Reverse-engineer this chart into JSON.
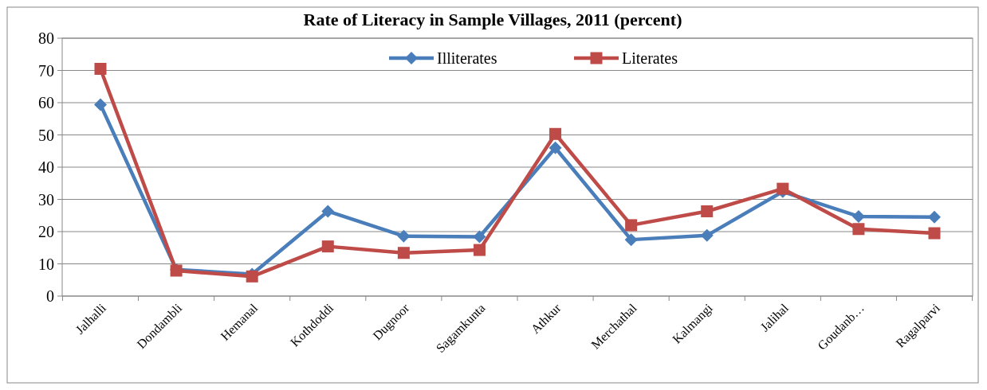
{
  "chart_data": {
    "type": "line",
    "title": "Rate of Literacy in Sample Villages, 2011 (percent)",
    "categories": [
      "Jalhalli",
      "Dondambli",
      "Hemanal",
      "Kothdoddi",
      "Dugnoor",
      "Sagamkunta",
      "Athkur",
      "Merchathal",
      "Kalmangi",
      "Jalihal",
      "Goudanb…",
      "Ragalparvi"
    ],
    "series": [
      {
        "name": "Illiterates",
        "color": "#4a7ebb",
        "marker": "diamond",
        "values": [
          59.4,
          8.2,
          6.8,
          26.3,
          18.6,
          18.4,
          46,
          17.5,
          18.8,
          32.4,
          24.7,
          24.5
        ]
      },
      {
        "name": "Literates",
        "color": "#be4b48",
        "marker": "square",
        "values": [
          70.5,
          7.9,
          6.1,
          15.4,
          13.4,
          14.3,
          50.3,
          22,
          26.3,
          33.3,
          20.8,
          19.5
        ]
      }
    ],
    "ylim": [
      0,
      80
    ],
    "yticks": [
      0,
      10,
      20,
      30,
      40,
      50,
      60,
      70,
      80
    ],
    "grid": "y",
    "legend": "top"
  }
}
